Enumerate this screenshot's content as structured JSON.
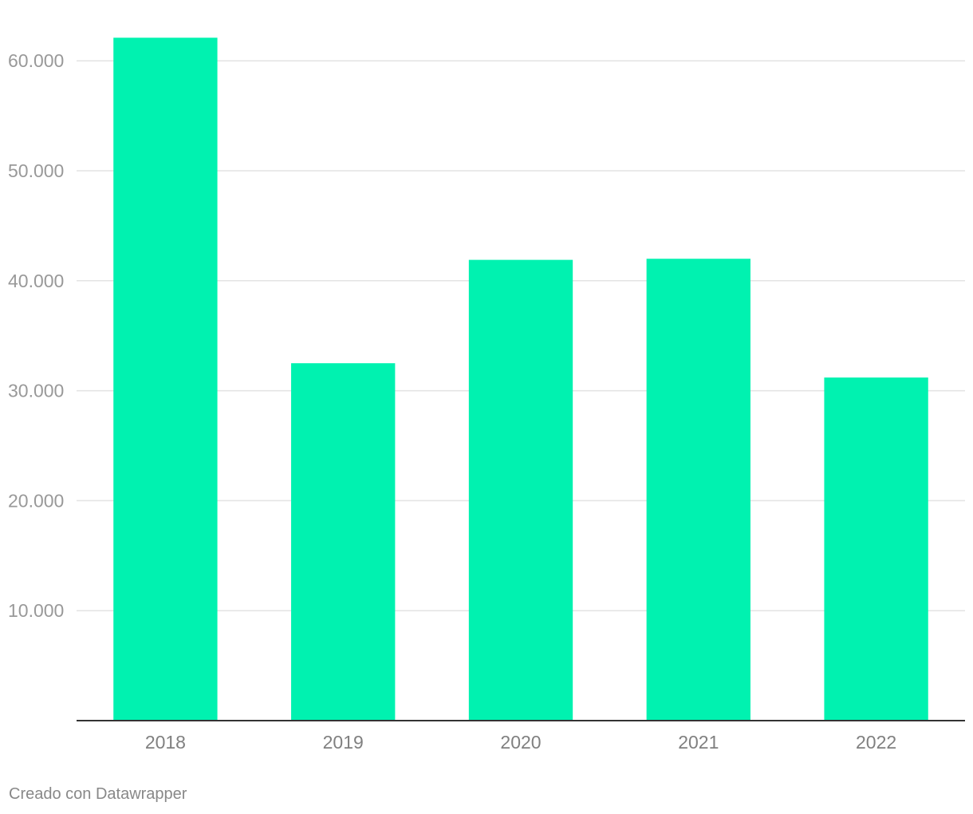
{
  "chart_data": {
    "type": "bar",
    "categories": [
      "2018",
      "2019",
      "2020",
      "2021",
      "2022"
    ],
    "values": [
      62100,
      32500,
      41900,
      42000,
      31200
    ],
    "ylim": [
      0,
      64000
    ],
    "yticks": [
      10000,
      20000,
      30000,
      40000,
      50000,
      60000
    ],
    "ytick_labels": [
      "10.000",
      "20.000",
      "30.000",
      "40.000",
      "50.000",
      "60.000"
    ],
    "grid": true,
    "bar_color": "#00f2b0",
    "title": "",
    "xlabel": "",
    "ylabel": ""
  },
  "footer": {
    "credit": "Creado con Datawrapper"
  }
}
